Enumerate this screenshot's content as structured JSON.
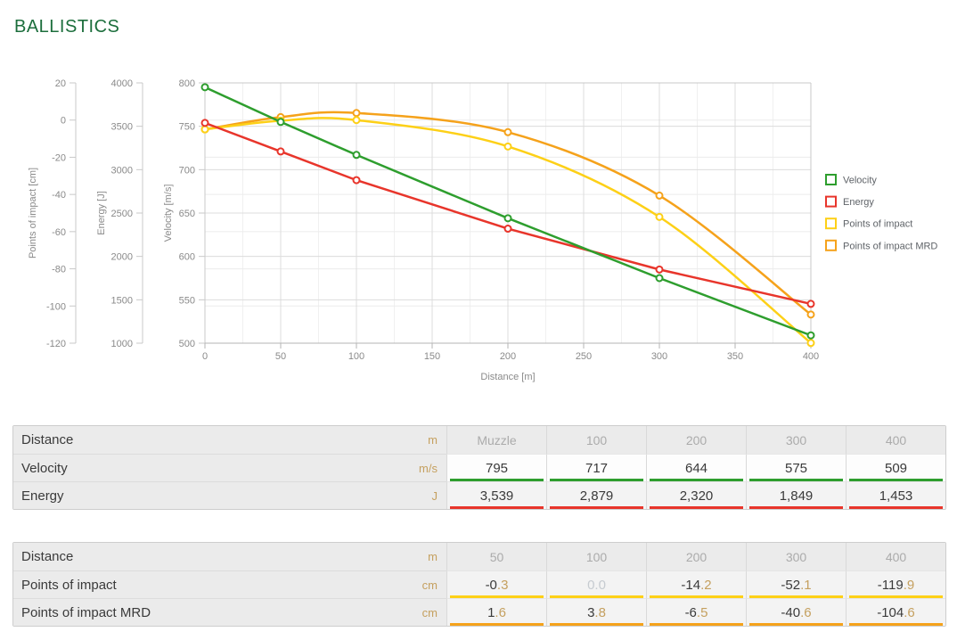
{
  "page": {
    "title": "BALLISTICS"
  },
  "colors": {
    "title": "#1c6e3c",
    "velocity": "#2e9e2e",
    "energy": "#e8352b",
    "points_of_impact": "#fdd017",
    "points_of_impact_mrd": "#f5a21b",
    "unit_text": "#c5a05f",
    "muted_value": "#c6cbd0",
    "column_header_text": "#ababab",
    "body_text": "#3a3a3a",
    "axis_text": "#8a8a8a"
  },
  "chart_data": {
    "type": "line",
    "title": "",
    "grid": true,
    "legend_position": "right",
    "x": {
      "label": "Distance [m]",
      "min": 0,
      "max": 400,
      "ticks": [
        0,
        50,
        100,
        150,
        200,
        250,
        300,
        350,
        400
      ],
      "minor_step": 25
    },
    "y_axes": [
      {
        "id": "velocity",
        "label": "Velocity [m/s]",
        "min": 500,
        "max": 800,
        "ticks": [
          800,
          750,
          700,
          650,
          600,
          550,
          500
        ]
      },
      {
        "id": "energy",
        "label": "Energy [J]",
        "min": 1000,
        "max": 4000,
        "ticks": [
          4000,
          3500,
          3000,
          2500,
          2000,
          1500,
          1000
        ]
      },
      {
        "id": "poi",
        "label": "Points of impact [cm]",
        "min": -120,
        "max": 20,
        "ticks": [
          20,
          0,
          -20,
          -40,
          -60,
          -80,
          -100,
          -120
        ]
      }
    ],
    "series": [
      {
        "name": "Points of impact MRD",
        "axis": "poi",
        "color": "#f5a21b",
        "curve": "smooth",
        "x": [
          0,
          50,
          100,
          200,
          300,
          400
        ],
        "y": [
          -5.0,
          1.6,
          3.8,
          -6.5,
          -40.6,
          -104.6
        ]
      },
      {
        "name": "Points of impact",
        "axis": "poi",
        "color": "#fdd017",
        "curve": "smooth",
        "x": [
          0,
          50,
          100,
          200,
          300,
          400
        ],
        "y": [
          -5.0,
          -0.3,
          0.0,
          -14.2,
          -52.1,
          -119.9
        ]
      },
      {
        "name": "Energy",
        "axis": "energy",
        "color": "#e8352b",
        "curve": "linear",
        "x": [
          0,
          50,
          100,
          200,
          300,
          400
        ],
        "y": [
          3539,
          3210,
          2879,
          2320,
          1849,
          1453
        ]
      },
      {
        "name": "Velocity",
        "axis": "velocity",
        "color": "#2e9e2e",
        "curve": "linear",
        "x": [
          0,
          50,
          100,
          200,
          300,
          400
        ],
        "y": [
          795,
          755,
          717,
          644,
          575,
          509
        ]
      }
    ],
    "legend": [
      {
        "label": "Velocity",
        "color": "#2e9e2e"
      },
      {
        "label": "Energy",
        "color": "#e8352b"
      },
      {
        "label": "Points of impact",
        "color": "#fdd017"
      },
      {
        "label": "Points of impact MRD",
        "color": "#f5a21b"
      }
    ]
  },
  "tables": [
    {
      "name": "velocity-energy-table",
      "header": {
        "label": "Distance",
        "unit": "m",
        "columns": [
          "Muzzle",
          "100",
          "200",
          "300",
          "400"
        ]
      },
      "rows": [
        {
          "label": "Velocity",
          "unit": "m/s",
          "color": "#2e9e2e",
          "values": [
            {
              "main": "795",
              "frac": ""
            },
            {
              "main": "717",
              "frac": ""
            },
            {
              "main": "644",
              "frac": ""
            },
            {
              "main": "575",
              "frac": ""
            },
            {
              "main": "509",
              "frac": ""
            }
          ]
        },
        {
          "label": "Energy",
          "unit": "J",
          "color": "#e8352b",
          "values": [
            {
              "main": "3,539",
              "frac": ""
            },
            {
              "main": "2,879",
              "frac": ""
            },
            {
              "main": "2,320",
              "frac": ""
            },
            {
              "main": "1,849",
              "frac": ""
            },
            {
              "main": "1,453",
              "frac": ""
            }
          ]
        }
      ]
    },
    {
      "name": "points-of-impact-table",
      "header": {
        "label": "Distance",
        "unit": "m",
        "columns": [
          "50",
          "100",
          "200",
          "300",
          "400"
        ]
      },
      "rows": [
        {
          "label": "Points of impact",
          "unit": "cm",
          "color": "#fdd017",
          "values": [
            {
              "main": "-0",
              "frac": ".3"
            },
            {
              "main": "0",
              "frac": ".0",
              "muted": true
            },
            {
              "main": "-14",
              "frac": ".2"
            },
            {
              "main": "-52",
              "frac": ".1"
            },
            {
              "main": "-119",
              "frac": ".9"
            }
          ]
        },
        {
          "label": "Points of impact MRD",
          "unit": "cm",
          "color": "#f5a21b",
          "values": [
            {
              "main": "1",
              "frac": ".6"
            },
            {
              "main": "3",
              "frac": ".8"
            },
            {
              "main": "-6",
              "frac": ".5"
            },
            {
              "main": "-40",
              "frac": ".6"
            },
            {
              "main": "-104",
              "frac": ".6"
            }
          ]
        }
      ]
    }
  ]
}
